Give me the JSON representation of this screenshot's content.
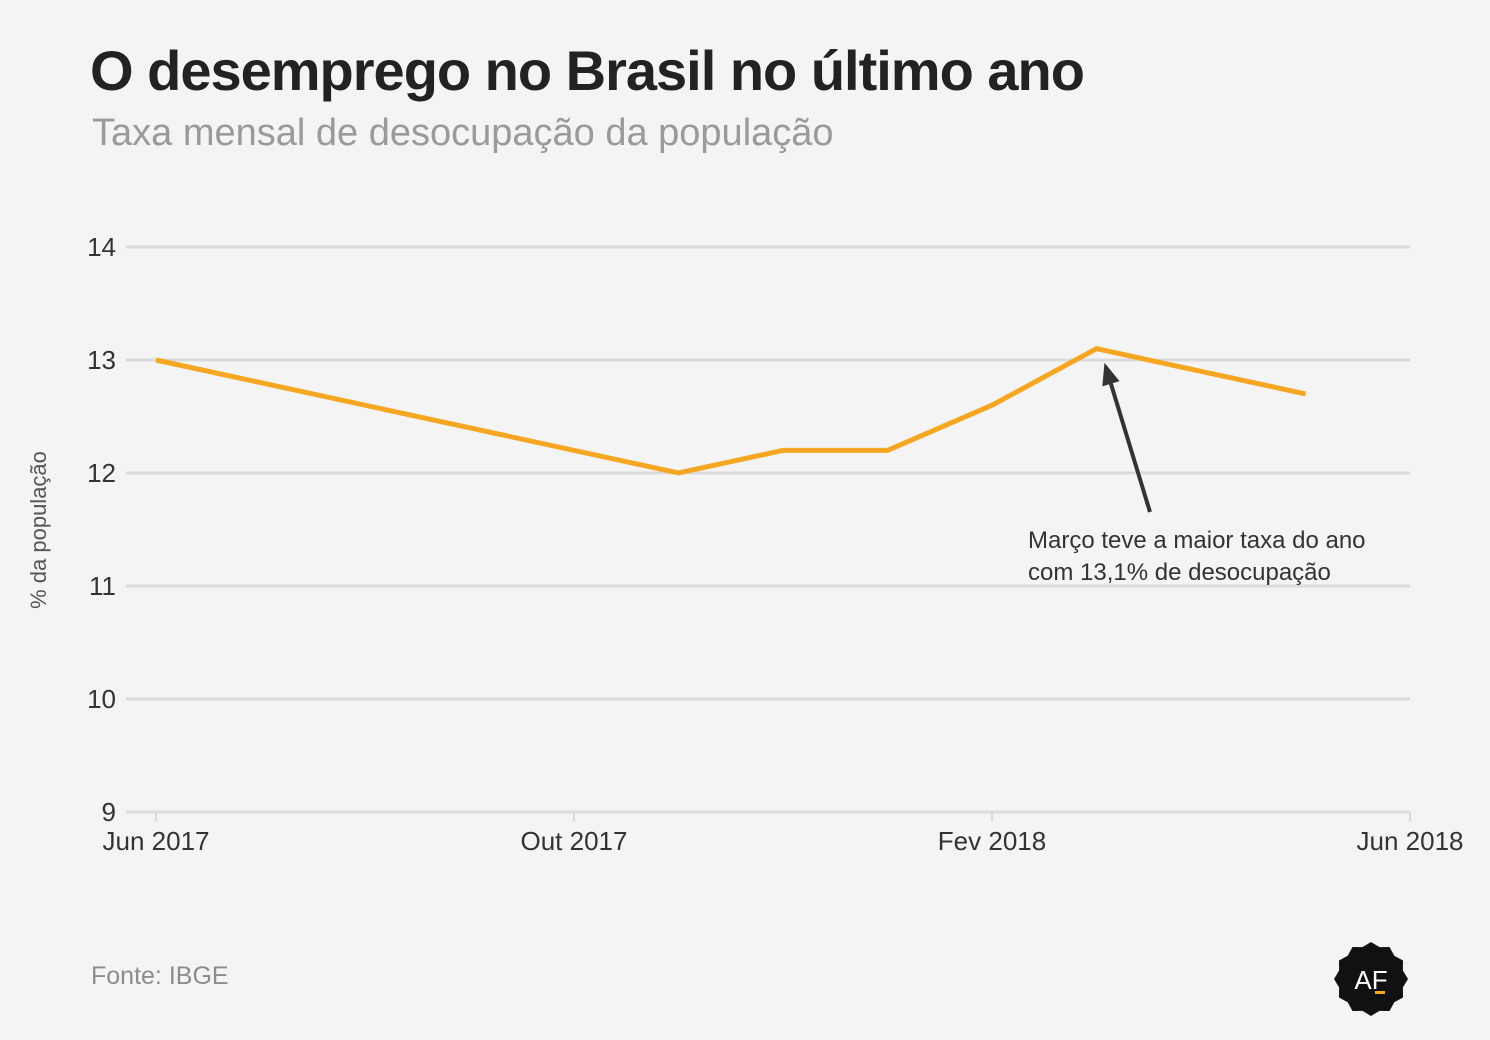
{
  "header": {
    "title": "O desemprego no Brasil no último ano",
    "subtitle": "Taxa mensal de desocupação da população"
  },
  "footer": {
    "source": "Fonte: IBGE",
    "logo_text": "AF"
  },
  "colors": {
    "line": "#f5a623",
    "grid": "#dcdcdc",
    "arrow": "#333333",
    "background": "#f4f4f4"
  },
  "chart_data": {
    "type": "line",
    "title": "",
    "xlabel": "",
    "ylabel": "% da população",
    "ylim": [
      9,
      14
    ],
    "yticks": [
      9,
      10,
      11,
      12,
      13,
      14
    ],
    "xlim": [
      "2017-06",
      "2018-06"
    ],
    "xticks": [
      {
        "date": "2017-06",
        "label": "Jun 2017"
      },
      {
        "date": "2017-10",
        "label": "Out 2017"
      },
      {
        "date": "2018-02",
        "label": "Fev 2018"
      },
      {
        "date": "2018-06",
        "label": "Jun 2018"
      }
    ],
    "grid": true,
    "series": [
      {
        "points": [
          {
            "x": "2017-06",
            "y": 13.0
          },
          {
            "x": "2017-11",
            "y": 12.0
          },
          {
            "x": "2017-12",
            "y": 12.2
          },
          {
            "x": "2018-01",
            "y": 12.2
          },
          {
            "x": "2018-02",
            "y": 12.6
          },
          {
            "x": "2018-03",
            "y": 13.1
          },
          {
            "x": "2018-05",
            "y": 12.7
          }
        ]
      }
    ],
    "annotation": {
      "lines": [
        "Março teve a maior taxa do ano",
        "com 13,1% de desocupação"
      ],
      "target": {
        "x": "2018-03",
        "y": 13.1
      }
    }
  }
}
